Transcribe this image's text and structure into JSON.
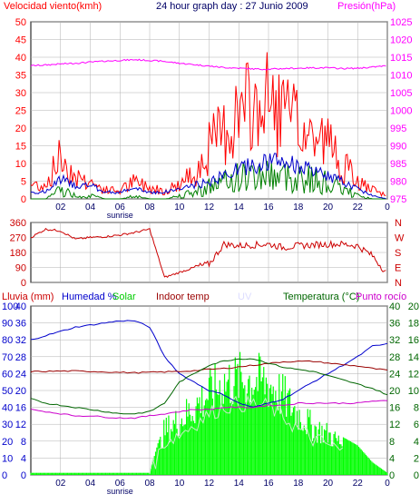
{
  "colors": {
    "frame": "#000000",
    "grid": "#b0b0b0",
    "wind_avg": "#0000cc",
    "wind_gust": "#ff0000",
    "wind_min": "#008000",
    "pressure": "#ff00ff",
    "direction": "#cc0000",
    "rain": "#ff0000",
    "humidity": "#0000cc",
    "solar": "#00ff00",
    "indoor_temp": "#990000",
    "uv": "#e0e0ff",
    "temperature": "#006600",
    "dew_point": "#cc00cc",
    "sunrise": "#000066"
  },
  "header": {
    "wind_label": "Velocidad viento(kmh)",
    "title": "24 hour graph day : 27 Junio 2009",
    "pressure_label": "Presión(hPa)"
  },
  "x_ticks": [
    "02",
    "04",
    "06",
    "08",
    "10",
    "12",
    "14",
    "16",
    "18",
    "20",
    "22",
    "0"
  ],
  "sunrise_label": "sunrise",
  "chart_data": [
    {
      "type": "line",
      "name": "wind_pressure",
      "title": "24 hour graph day : 27 Junio 2009",
      "ylabel": "Velocidad viento(kmh)",
      "y2label": "Presión(hPa)",
      "ylim": [
        0,
        50
      ],
      "y2lim": [
        975,
        1025
      ],
      "y_ticks": [
        "0",
        "5",
        "10",
        "15",
        "20",
        "25",
        "30",
        "35",
        "40",
        "45",
        "50"
      ],
      "y2_ticks": [
        "975",
        "980",
        "985",
        "990",
        "995",
        "1000",
        "1005",
        "1010",
        "1015",
        "1020",
        "1025"
      ],
      "x_hours": [
        0,
        1,
        2,
        3,
        4,
        5,
        6,
        7,
        8,
        9,
        10,
        11,
        12,
        13,
        14,
        15,
        16,
        17,
        18,
        19,
        20,
        21,
        22,
        23,
        24
      ],
      "series": [
        {
          "values": [
            2,
            2,
            6,
            4,
            4,
            2,
            2,
            3,
            2,
            2,
            3,
            4,
            5,
            7,
            9,
            10,
            11,
            11,
            10,
            8,
            7,
            5,
            3,
            1,
            0
          ]
        },
        {
          "values": [
            5,
            5,
            15,
            8,
            6,
            3,
            3,
            6,
            4,
            3,
            5,
            9,
            18,
            24,
            30,
            32,
            34,
            30,
            25,
            22,
            20,
            12,
            6,
            3,
            1
          ]
        },
        {
          "values": [
            0,
            0,
            3,
            1,
            1,
            0,
            0,
            1,
            0,
            0,
            1,
            2,
            4,
            5,
            7,
            7,
            8,
            7,
            7,
            6,
            5,
            3,
            1,
            0,
            0
          ]
        },
        {
          "values": [
            1012.6,
            1012.8,
            1013.1,
            1013.3,
            1013.6,
            1013.9,
            1014.1,
            1014.3,
            1014.1,
            1013.8,
            1013.3,
            1012.9,
            1012.5,
            1012.1,
            1011.9,
            1011.7,
            1011.6,
            1011.8,
            1011.9,
            1012.0,
            1012.0,
            1011.8,
            1011.9,
            1012.2,
            1012.6
          ]
        }
      ]
    },
    {
      "type": "line",
      "name": "wind_direction",
      "ylim": [
        0,
        360
      ],
      "y_ticks": [
        "0",
        "90",
        "180",
        "270",
        "360"
      ],
      "y2_ticks": [
        "N",
        "W",
        "S",
        "E",
        "N"
      ],
      "series": [
        {
          "values": [
            270,
            320,
            310,
            260,
            270,
            275,
            285,
            300,
            320,
            30,
            60,
            90,
            110,
            230,
            220,
            225,
            230,
            210,
            220,
            225,
            230,
            230,
            220,
            160,
            50
          ]
        }
      ]
    },
    {
      "type": "line",
      "name": "humidity_temperature",
      "ylabel": "Lluvia (mm)",
      "y2label": "Temperatura (°C)",
      "legend": [
        "Humedad %",
        "Solar",
        "Indoor temp",
        "UV",
        "Temperatura (°C)",
        "Punto rocío"
      ],
      "rain_ticks": [
        "0",
        "10",
        "20",
        "30",
        "40",
        "50",
        "60",
        "70",
        "80",
        "90",
        "100"
      ],
      "humidity_ticks": [
        "0",
        "4",
        "8",
        "12",
        "16",
        "20",
        "24",
        "28",
        "32",
        "36",
        "40"
      ],
      "temp_ticks_left": [
        "0",
        "4",
        "8",
        "12",
        "16",
        "20",
        "24",
        "28",
        "32",
        "36",
        "40"
      ],
      "temp_ticks_right": [
        "0",
        "2",
        "4",
        "6",
        "8",
        "10",
        "12",
        "14",
        "16",
        "18",
        "20"
      ],
      "series": [
        {
          "name": "Humedad %",
          "values": [
            32,
            33,
            34,
            35,
            35.5,
            36,
            36.5,
            36.5,
            35,
            28,
            24,
            22,
            20,
            19,
            17,
            16,
            17,
            18,
            20,
            22,
            24,
            26,
            28,
            30.5,
            31
          ]
        },
        {
          "name": "Solar",
          "values": [
            0.5,
            0.5,
            0.5,
            0.5,
            0.5,
            0.5,
            0.5,
            0.5,
            0.5,
            13,
            16,
            20,
            24,
            27,
            28,
            28,
            27,
            23,
            18,
            14,
            12,
            9,
            7,
            3,
            0.5
          ]
        },
        {
          "name": "Indoor temp",
          "values": [
            24.5,
            24.5,
            24.6,
            24.6,
            24.5,
            24.4,
            24.3,
            24.2,
            24.3,
            24.4,
            24.5,
            24.7,
            25.0,
            25.2,
            25.6,
            26.0,
            26.4,
            26.8,
            26.9,
            26.9,
            26.5,
            26.1,
            25.8,
            25.2,
            24.8
          ]
        },
        {
          "name": "Temperatura (°C)",
          "values": [
            18,
            17,
            16.5,
            16,
            15.5,
            15,
            14.5,
            14.5,
            15,
            17,
            22,
            24,
            26,
            27,
            27.5,
            27.5,
            26.5,
            25.5,
            25,
            24.5,
            23.5,
            22.5,
            21.5,
            20.5,
            19
          ]
        },
        {
          "name": "Punto rocío",
          "values": [
            15.5,
            15.0,
            14.5,
            14.0,
            14.0,
            13.7,
            13.5,
            13.5,
            14.0,
            14.5,
            15.0,
            15.5,
            15.5,
            16.0,
            16.0,
            16.0,
            16.5,
            16.5,
            17.0,
            17.0,
            17.0,
            17.0,
            17.0,
            17.5,
            17.5
          ]
        }
      ]
    }
  ]
}
